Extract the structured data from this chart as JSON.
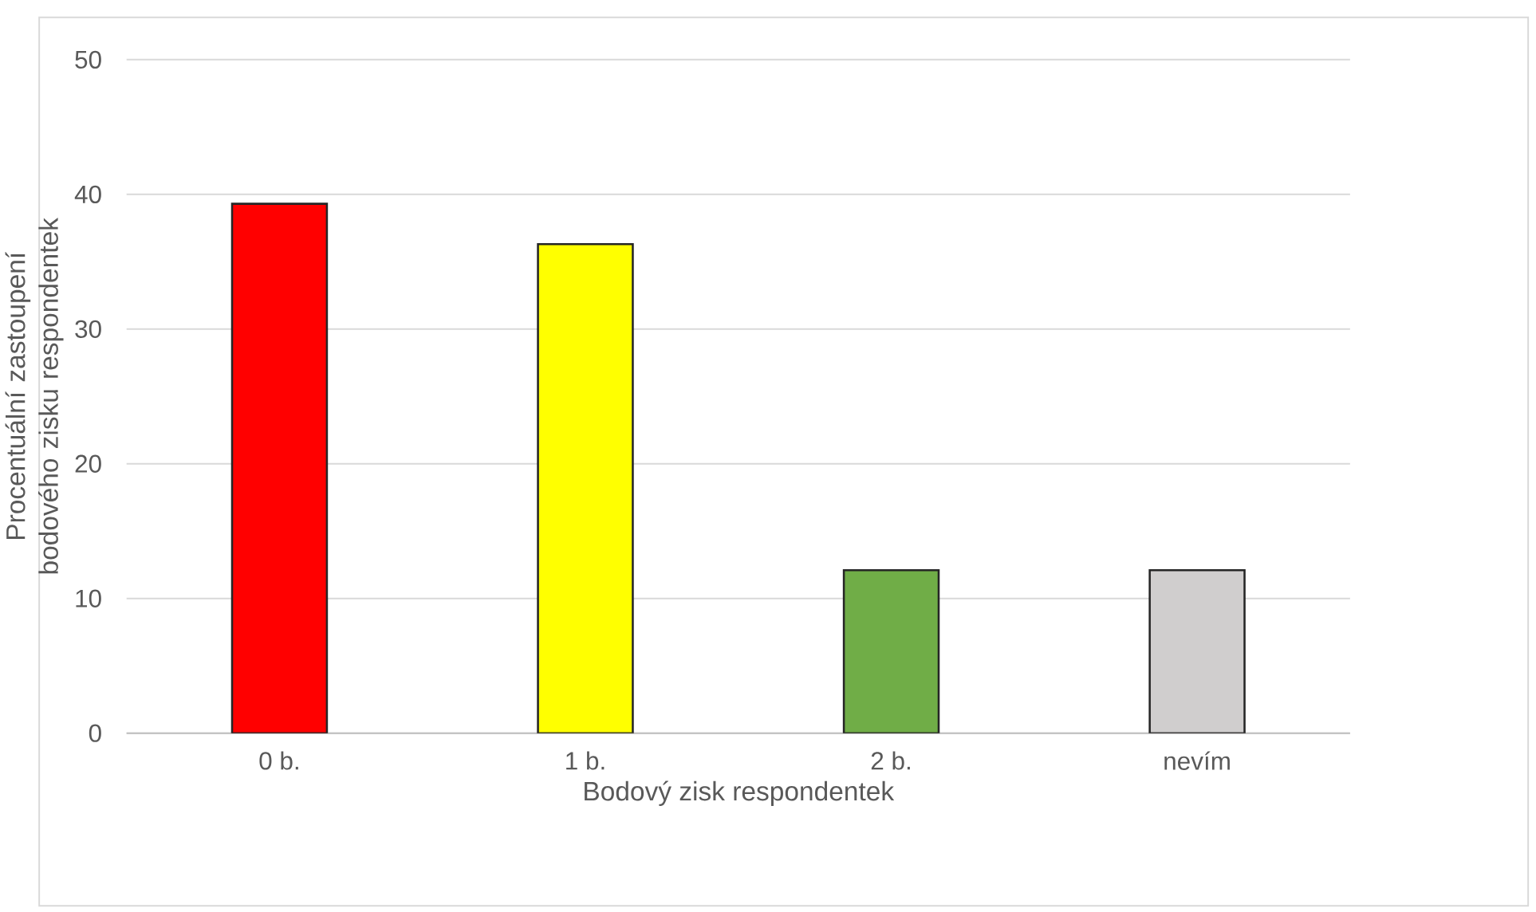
{
  "chart_data": {
    "type": "bar",
    "xlabel": "Bodový zisk respondentek",
    "ylabel": "Procentuální zastoupení bodového zisku respondentek",
    "categories": [
      "0 b.",
      "1 b.",
      "2 b.",
      "nevím"
    ],
    "values": [
      39.3,
      36.3,
      12.1,
      12.1
    ],
    "colors": [
      "#ff0000",
      "#ffff00",
      "#70ad47",
      "#d0cece"
    ],
    "ylim": [
      0,
      50
    ],
    "yticks": [
      0,
      10,
      20,
      30,
      40,
      50
    ],
    "grid": "y"
  }
}
